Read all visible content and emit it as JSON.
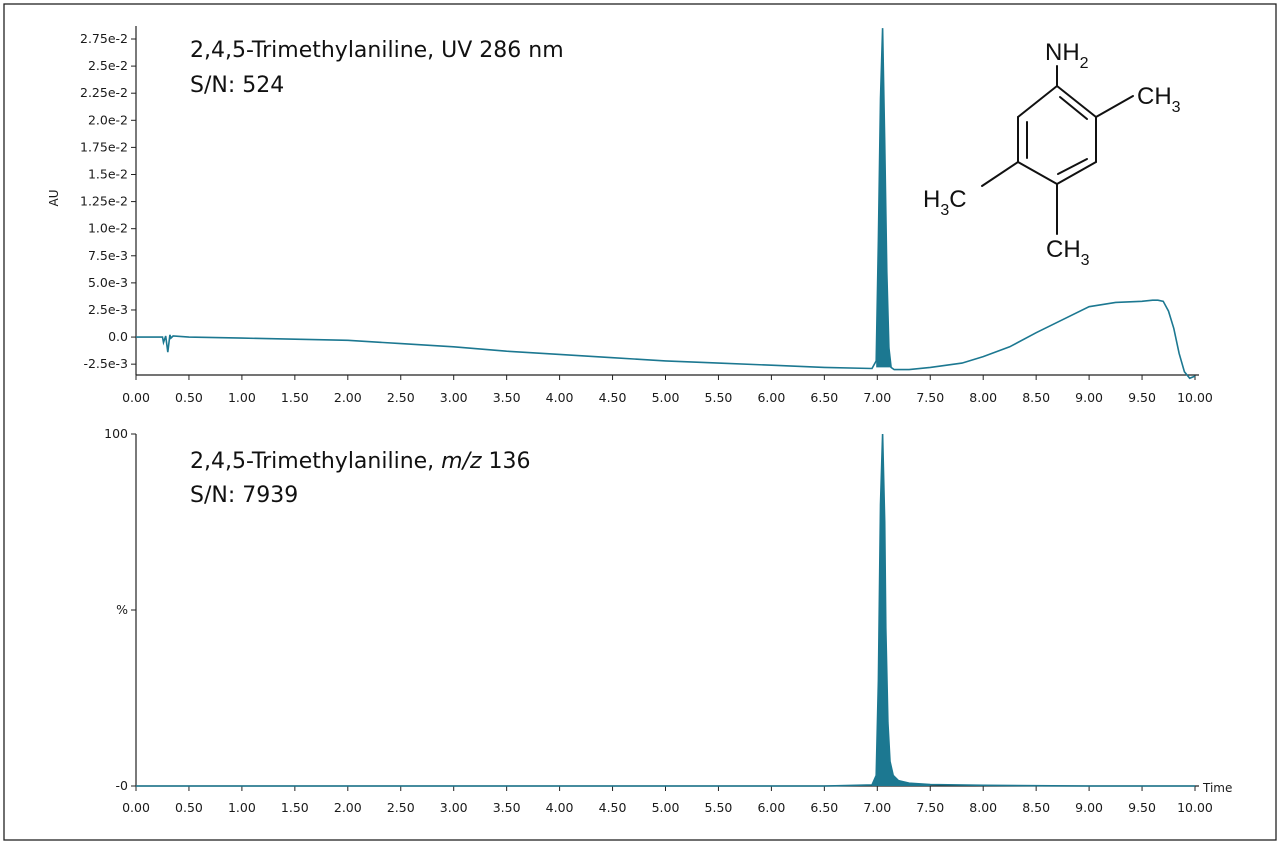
{
  "colors": {
    "trace": "#1c7891",
    "axis": "#222222",
    "text": "#111111"
  },
  "chart_data": [
    {
      "type": "line",
      "title": "2,4,5-Trimethylaniline, UV 286 nm",
      "subtitle": "S/N: 524",
      "ylabel": "AU",
      "xlabel": "",
      "xlim": [
        0,
        10
      ],
      "ylim": [
        -0.0035,
        0.0287
      ],
      "xtick_labels": [
        "0.00",
        "0.50",
        "1.00",
        "1.50",
        "2.00",
        "2.50",
        "3.00",
        "3.50",
        "4.00",
        "4.50",
        "5.00",
        "5.50",
        "6.00",
        "6.50",
        "7.00",
        "7.50",
        "8.00",
        "8.50",
        "9.00",
        "9.50",
        "10.00"
      ],
      "ytick_labels": [
        "-2.5e-3",
        "0.0",
        "2.5e-3",
        "5.0e-3",
        "7.5e-3",
        "1.0e-2",
        "1.25e-2",
        "1.5e-2",
        "1.75e-2",
        "2.0e-2",
        "2.25e-2",
        "2.5e-2",
        "2.75e-2"
      ],
      "series": [
        {
          "x": [
            0.0,
            0.25,
            0.26,
            0.28,
            0.3,
            0.32,
            0.33,
            0.35,
            0.5,
            1.0,
            1.5,
            2.0,
            2.5,
            3.0,
            3.5,
            4.0,
            4.5,
            5.0,
            5.5,
            6.0,
            6.5,
            6.95,
            6.99,
            7.01,
            7.03,
            7.05,
            7.07,
            7.09,
            7.11,
            7.13,
            7.16,
            7.3,
            7.5,
            7.8,
            8.0,
            8.25,
            8.5,
            8.75,
            9.0,
            9.25,
            9.5,
            9.6,
            9.65,
            9.7,
            9.75,
            9.8,
            9.85,
            9.9,
            9.95,
            10.0
          ],
          "y": [
            0.0,
            0.0,
            -0.0005,
            0.0001,
            -0.0014,
            0.0002,
            -0.0001,
            0.0001,
            0.0,
            -0.0001,
            -0.0002,
            -0.0003,
            -0.0006,
            -0.0009,
            -0.0013,
            -0.0016,
            -0.0019,
            -0.0022,
            -0.0024,
            -0.0026,
            -0.0028,
            -0.0029,
            -0.0022,
            0.009,
            0.022,
            0.0285,
            0.018,
            0.006,
            -0.001,
            -0.0028,
            -0.003,
            -0.003,
            -0.0028,
            -0.0024,
            -0.0018,
            -0.0009,
            0.0004,
            0.0016,
            0.0028,
            0.0032,
            0.0033,
            0.0034,
            0.0034,
            0.0033,
            0.0024,
            0.0008,
            -0.0015,
            -0.0032,
            -0.0038,
            -0.0036
          ]
        }
      ]
    },
    {
      "type": "line",
      "title": "2,4,5-Trimethylaniline, m/z 136",
      "title_parts": [
        "2,4,5-Trimethylaniline, ",
        "m/z",
        " 136"
      ],
      "subtitle": "S/N: 7939",
      "ylabel": "%",
      "xlabel": "Time",
      "xlim": [
        0,
        10
      ],
      "ylim": [
        0,
        100
      ],
      "xtick_labels": [
        "0.00",
        "0.50",
        "1.00",
        "1.50",
        "2.00",
        "2.50",
        "3.00",
        "3.50",
        "4.00",
        "4.50",
        "5.00",
        "5.50",
        "6.00",
        "6.50",
        "7.00",
        "7.50",
        "8.00",
        "8.50",
        "9.00",
        "9.50",
        "10.00"
      ],
      "ytick_labels": [
        "-0",
        "%",
        "100"
      ],
      "series": [
        {
          "x": [
            0.0,
            6.5,
            6.95,
            6.99,
            7.01,
            7.03,
            7.05,
            7.07,
            7.08,
            7.1,
            7.12,
            7.15,
            7.2,
            7.3,
            7.5,
            8.0,
            9.0,
            10.0
          ],
          "y": [
            0,
            0,
            0.3,
            3,
            30,
            80,
            100,
            75,
            45,
            18,
            7,
            3,
            1.5,
            0.8,
            0.4,
            0.2,
            0,
            0
          ]
        }
      ]
    }
  ],
  "structure": {
    "name": "2,4,5-Trimethylaniline",
    "nh2_main": "NH",
    "nh2_sub": "2",
    "ch3_right_main": "CH",
    "ch3_right_sub": "3",
    "ch3_bottom_main": "CH",
    "ch3_bottom_sub": "3",
    "h3c_left_pre": "H",
    "h3c_left_sub": "3",
    "h3c_left_post": "C"
  }
}
